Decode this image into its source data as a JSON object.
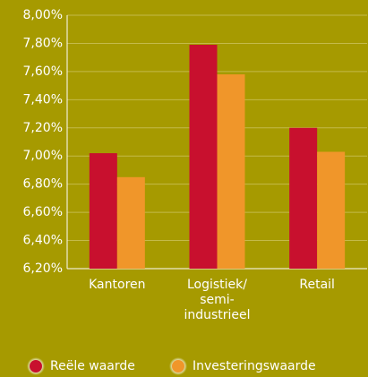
{
  "chart_data": {
    "type": "bar",
    "categories": [
      "Kantoren",
      "Logistiek/ semi- industrieel",
      "Retail"
    ],
    "series": [
      {
        "name": "Reële waarde",
        "color": "#c8102e",
        "values": [
          7.02,
          7.79,
          7.2
        ]
      },
      {
        "name": "Investeringswaarde",
        "color": "#f0962a",
        "values": [
          6.85,
          7.58,
          7.03
        ]
      }
    ],
    "ylim": [
      6.2,
      8.0
    ],
    "yticks": [
      {
        "value": 6.2,
        "label": "6,20%"
      },
      {
        "value": 6.4,
        "label": "6,40%"
      },
      {
        "value": 6.6,
        "label": "6,60%"
      },
      {
        "value": 6.8,
        "label": "6,80%"
      },
      {
        "value": 7.0,
        "label": "7,00%"
      },
      {
        "value": 7.2,
        "label": "7,20%"
      },
      {
        "value": 7.4,
        "label": "7,40%"
      },
      {
        "value": 7.6,
        "label": "7,60%"
      },
      {
        "value": 7.8,
        "label": "7,80%"
      },
      {
        "value": 8.0,
        "label": "8,00%"
      }
    ],
    "grid": true,
    "legend": "bottom"
  }
}
